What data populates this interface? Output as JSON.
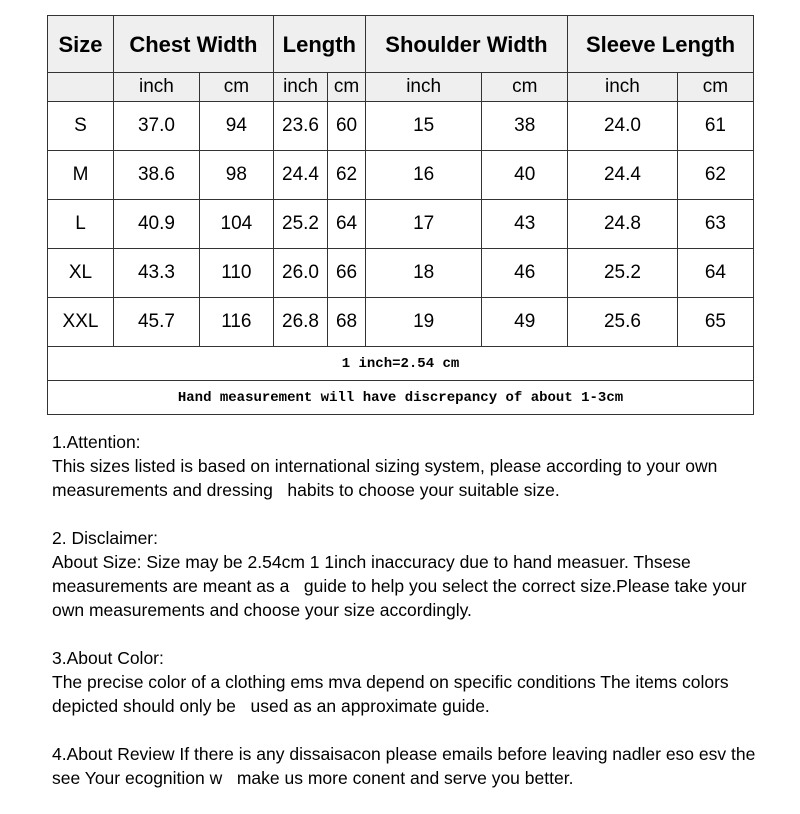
{
  "table": {
    "headers": [
      "Size",
      "Chest Width",
      "Length",
      "Shoulder Width",
      "Sleeve Length"
    ],
    "units": [
      "inch",
      "cm",
      "inch",
      "cm",
      "inch",
      "cm",
      "inch",
      "cm"
    ],
    "rows": [
      [
        "S",
        "37.0",
        "94",
        "23.6",
        "60",
        "15",
        "38",
        "24.0",
        "61"
      ],
      [
        "M",
        "38.6",
        "98",
        "24.4",
        "62",
        "16",
        "40",
        "24.4",
        "62"
      ],
      [
        "L",
        "40.9",
        "104",
        "25.2",
        "64",
        "17",
        "43",
        "24.8",
        "63"
      ],
      [
        "XL",
        "43.3",
        "110",
        "26.0",
        "66",
        "18",
        "46",
        "25.2",
        "64"
      ],
      [
        "XXL",
        "45.7",
        "116",
        "26.8",
        "68",
        "19",
        "49",
        "25.6",
        "65"
      ]
    ],
    "note1": "1 inch=2.54 cm",
    "note2": "Hand measurement will have discrepancy of about 1-3cm"
  },
  "notes": [
    {
      "title": "1.Attention:",
      "body": "This sizes listed is based on international sizing system, please according to your own measurements and dressing   habits to choose your suitable size."
    },
    {
      "title": "2. Disclaimer:",
      "body": "About Size: Size may be 2.54cm 1 1inch inaccuracy due to hand measuer. Thsese measurements are meant as a   guide to help you select the correct size.Please take your own measurements and choose your size accordingly."
    },
    {
      "title": "3.About Color:",
      "body": "The precise color of a clothing ems mva depend on specific conditions The items colors depicted should only be   used as an approximate guide."
    },
    {
      "title": "",
      "body": "4.About Review If there is any dissaisacon please emails before leaving nadler eso esv the see Your ecognition w   make us more conent and serve you better."
    }
  ]
}
